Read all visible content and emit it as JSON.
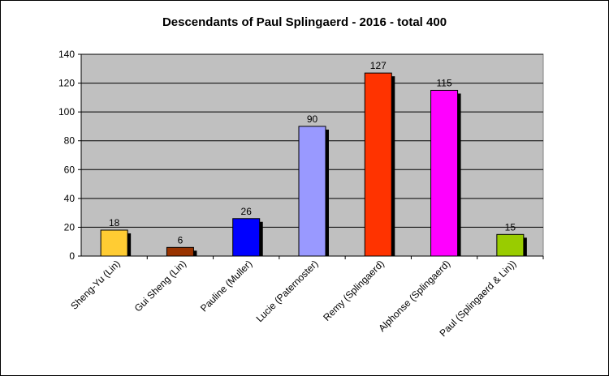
{
  "chart_data": {
    "type": "bar",
    "title": "Descendants of Paul Splingaerd - 2016 - total 400",
    "categories": [
      "Sheng-Yu (Lin)",
      "Gui Sheng (Lin)",
      "Pauline (Muller)",
      "Lucie (Paternoster)",
      "Remy (Splingaerd)",
      "Alphonse (Splingaerd)",
      "Paul (Splingaerd & Lin))"
    ],
    "values": [
      18,
      6,
      26,
      90,
      127,
      115,
      15
    ],
    "colors": [
      "#FFCC33",
      "#993300",
      "#0000FF",
      "#9999FF",
      "#FF3300",
      "#FF00FF",
      "#99CC00"
    ],
    "ylim": [
      0,
      140
    ],
    "yticks": [
      0,
      20,
      40,
      60,
      80,
      100,
      120,
      140
    ],
    "grid": true,
    "plot_background": "#C0C0C0",
    "xlabel": "",
    "ylabel": ""
  }
}
